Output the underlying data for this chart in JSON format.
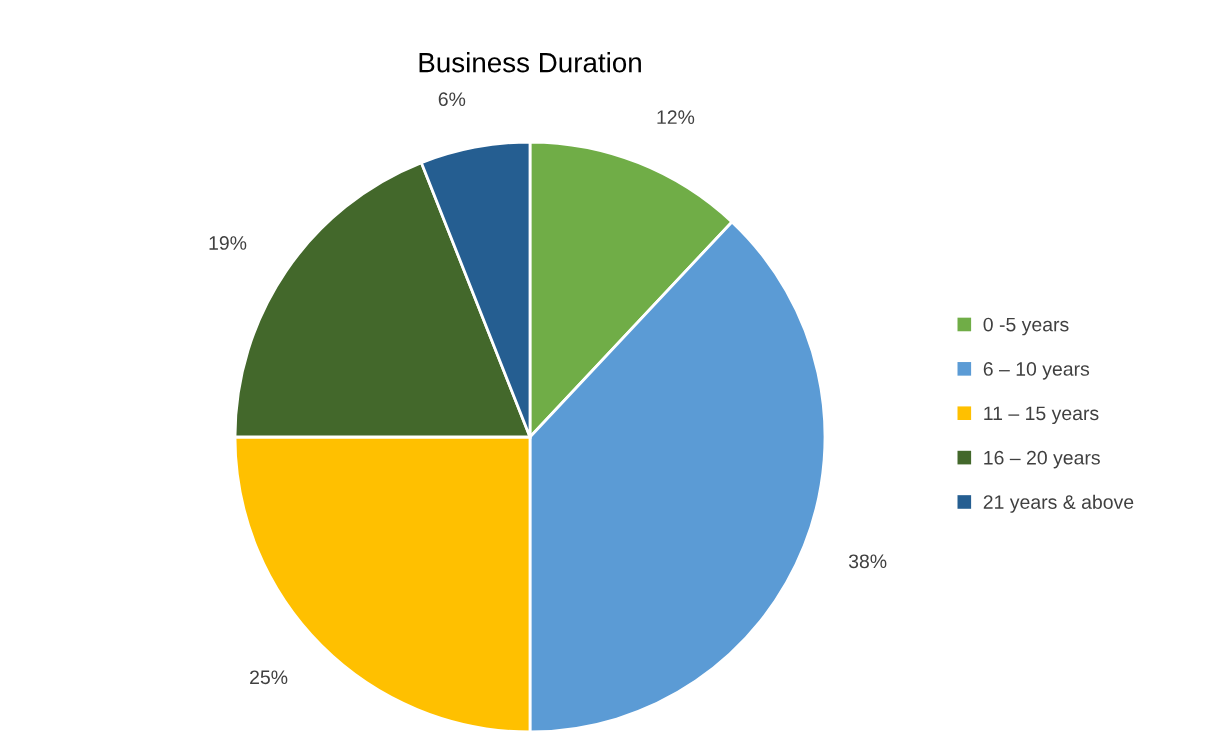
{
  "chart_data": {
    "type": "pie",
    "title": "Business Duration",
    "categories": [
      "0 -5 years",
      "6 – 10 years",
      "11 – 15 years",
      "16 – 20 years",
      "21 years & above"
    ],
    "values": [
      12,
      38,
      25,
      19,
      6
    ],
    "colors": [
      "#70ad47",
      "#5b9bd5",
      "#ffc000",
      "#43682b",
      "#255e91"
    ],
    "value_labels": [
      "12%",
      "38%",
      "25%",
      "19%",
      "6%"
    ],
    "legend": "right"
  }
}
